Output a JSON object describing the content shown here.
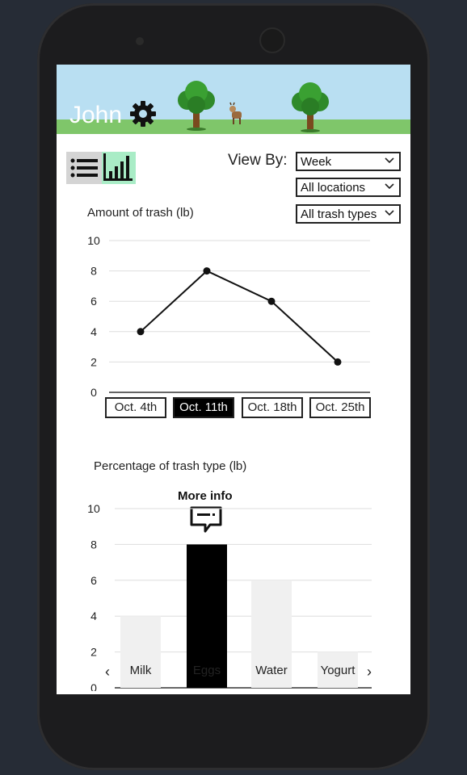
{
  "header": {
    "username": "John"
  },
  "icons": {
    "settings": "gear-icon",
    "list_view": "list-icon",
    "chart_view": "bar-chart-icon",
    "more_info": "comment-bubble-icon"
  },
  "filters": {
    "view_by_label": "View By:",
    "period": "Week",
    "location": "All locations",
    "trash_type": "All trash types"
  },
  "colors": {
    "header_sky": "#b9dff2",
    "grass": "#7fc66a",
    "chart_view_active": "#a9ecc6",
    "selected": "#000000",
    "inactive_bar": "#f0f0f0"
  },
  "line_chart_nav": {
    "dates": [
      "Oct. 4th",
      "Oct. 11th",
      "Oct. 18th",
      "Oct. 25th"
    ],
    "selected_index": 1
  },
  "bar_chart_nav": {
    "more_info_label": "More info",
    "prev_arrow": "‹",
    "next_arrow": "›",
    "selected_index": 1
  },
  "chart_data": [
    {
      "type": "line",
      "title": "Amount of trash (lb)",
      "categories": [
        "Oct. 4th",
        "Oct. 11th",
        "Oct. 18th",
        "Oct. 25th"
      ],
      "values": [
        4,
        8,
        6,
        2
      ],
      "ylim": [
        0,
        10
      ],
      "yticks": [
        0,
        2,
        4,
        6,
        8,
        10
      ],
      "grid": true
    },
    {
      "type": "bar",
      "title": "Percentage of trash type (lb)",
      "categories": [
        "Milk",
        "Eggs",
        "Water",
        "Yogurt"
      ],
      "values": [
        4,
        8,
        6,
        2
      ],
      "ylim": [
        0,
        10
      ],
      "yticks": [
        0,
        2,
        4,
        6,
        8,
        10
      ],
      "grid": true
    }
  ]
}
